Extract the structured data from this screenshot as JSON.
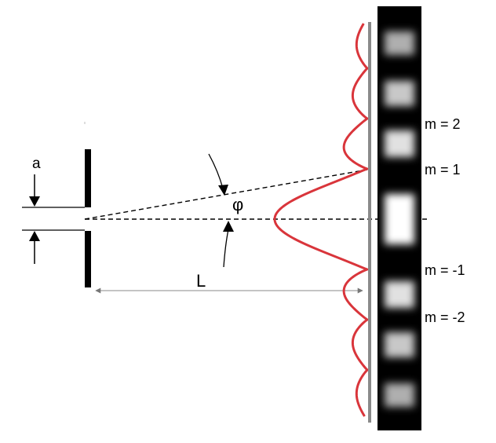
{
  "labels": {
    "slit_width": "a",
    "angle": "φ",
    "distance": "L",
    "orders": [
      "m = 2",
      "m = 1",
      "m = -1",
      "m = -2"
    ]
  },
  "colors": {
    "background": "#ffffff",
    "barrier": "#000000",
    "intensity_curve": "#d9353b",
    "screen": "#808080",
    "fringe_strip": "#000000"
  }
}
